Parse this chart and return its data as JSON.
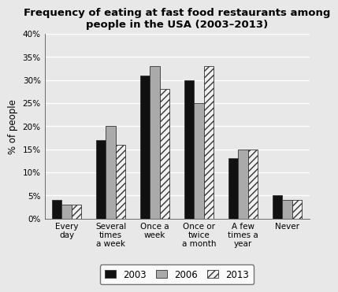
{
  "title": "Frequency of eating at fast food restaurants among\npeople in the USA (2003–2013)",
  "categories": [
    "Every\nday",
    "Several\ntimes\na week",
    "Once a\nweek",
    "Once or\ntwice\na month",
    "A few\ntimes a\nyear",
    "Never"
  ],
  "series": {
    "2003": [
      4,
      17,
      31,
      30,
      13,
      5
    ],
    "2006": [
      3,
      20,
      33,
      25,
      15,
      4
    ],
    "2013": [
      3,
      16,
      28,
      33,
      15,
      4
    ]
  },
  "colors": {
    "2003": "#111111",
    "2006": "#aaaaaa",
    "2013": "#f0f0f0"
  },
  "hatch": {
    "2003": "",
    "2006": "",
    "2013": "////"
  },
  "ylabel": "% of people",
  "ylim": [
    0,
    40
  ],
  "yticks": [
    0,
    5,
    10,
    15,
    20,
    25,
    30,
    35,
    40
  ],
  "ytick_labels": [
    "0%",
    "5%",
    "10%",
    "15%",
    "20%",
    "25%",
    "30%",
    "35%",
    "40%"
  ],
  "bar_width": 0.22,
  "background_color": "#e8e8e8",
  "plot_bg_color": "#e8e8e8",
  "legend_labels": [
    "2003",
    "2006",
    "2013"
  ],
  "title_fontsize": 9.5,
  "axis_label_fontsize": 8.5,
  "tick_fontsize": 7.5,
  "legend_fontsize": 8.5
}
